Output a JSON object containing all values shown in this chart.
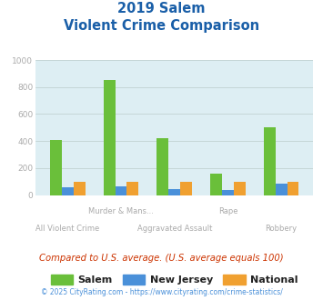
{
  "title_line1": "2019 Salem",
  "title_line2": "Violent Crime Comparison",
  "categories": [
    "All Violent Crime",
    "Murder & Mans...",
    "Aggravated Assault",
    "Rape",
    "Robbery"
  ],
  "salem": [
    410,
    850,
    420,
    155,
    500
  ],
  "new_jersey": [
    55,
    65,
    47,
    40,
    85
  ],
  "national": [
    100,
    100,
    100,
    100,
    100
  ],
  "salem_color": "#6abf3a",
  "nj_color": "#4a90d9",
  "national_color": "#f0a030",
  "bg_color": "#ddeef3",
  "ylim": [
    0,
    1000
  ],
  "yticks": [
    0,
    200,
    400,
    600,
    800,
    1000
  ],
  "footer_text": "Compared to U.S. average. (U.S. average equals 100)",
  "copyright_text": "© 2025 CityRating.com - https://www.cityrating.com/crime-statistics/",
  "title_color": "#1a5fa8",
  "footer_color": "#cc3300",
  "copyright_color": "#4a90d9",
  "tick_label_color": "#aaaaaa",
  "bar_width": 0.22,
  "figsize": [
    3.55,
    3.3
  ],
  "dpi": 100
}
